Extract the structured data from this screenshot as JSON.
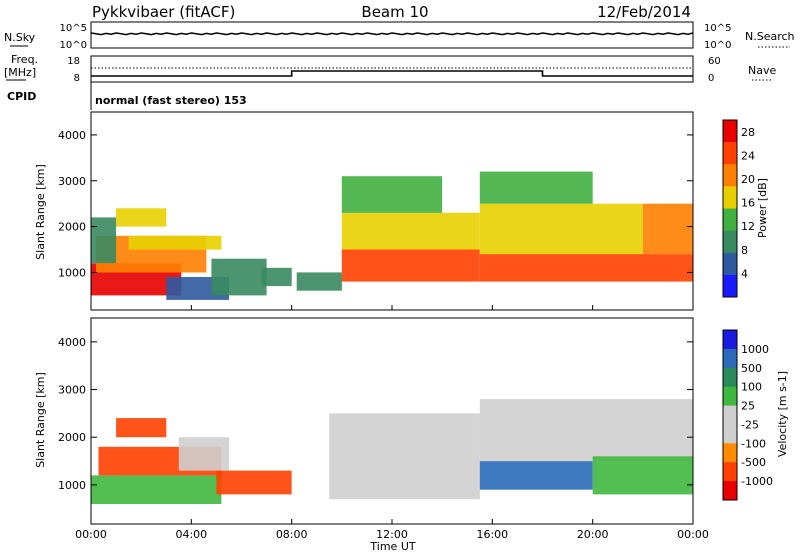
{
  "header": {
    "station": "Pykkvibaer (fitACF)",
    "beam": "Beam 10",
    "date": "12/Feb/2014"
  },
  "left_labels": {
    "nsky": "N.Sky",
    "freq_top": "Freq.",
    "freq_unit": "[MHz]",
    "cpid": "CPID"
  },
  "right_labels": {
    "nsearch": "N.Search",
    "nave": "Nave"
  },
  "strip_axes": {
    "nsky_ticks": [
      "10^5",
      "10^0"
    ],
    "nsearch_ticks": [
      "10^5",
      "10^0"
    ],
    "freq_ticks": [
      "18",
      "8"
    ],
    "nave_ticks": [
      "60",
      "0"
    ]
  },
  "cpid_text": "normal (fast stereo) 153",
  "x_axis": {
    "label": "Time UT",
    "ticks": [
      "00:00",
      "04:00",
      "08:00",
      "12:00",
      "16:00",
      "20:00",
      "00:00"
    ]
  },
  "colors": {
    "power_scale": [
      "#1a1aff",
      "#2d5aa0",
      "#3a8a60",
      "#40b040",
      "#e8d000",
      "#ff8000",
      "#ff4000",
      "#e80000"
    ],
    "velocity_scale": [
      "#e80000",
      "#ff4000",
      "#ff8c00",
      "#cfcfcf",
      "#cfcfcf",
      "#40b840",
      "#2a8a5a",
      "#2a6ab8",
      "#1a1ae0"
    ],
    "ground_scatter": "#c8c8c4"
  },
  "chart_data": [
    {
      "type": "heatmap",
      "panel": "power",
      "ylabel": "Slant Range [km]",
      "ylim": [
        180,
        4500
      ],
      "yticks": [
        "4000",
        "3000",
        "2000",
        "1000"
      ],
      "xlim": [
        0,
        24
      ],
      "colorbar": {
        "label": "Power [dB]",
        "ticks": [
          "28",
          "24",
          "20",
          "16",
          "12",
          "8",
          "4"
        ],
        "range": [
          0,
          30
        ]
      },
      "regions": [
        {
          "t0": 0.0,
          "t1": 3.6,
          "r0": 500,
          "r1": 1200,
          "value": 27
        },
        {
          "t0": 0.2,
          "t1": 4.6,
          "r0": 1000,
          "r1": 1800,
          "value": 20
        },
        {
          "t0": 1.5,
          "t1": 5.2,
          "r0": 1500,
          "r1": 1800,
          "value": 18
        },
        {
          "t0": 1.0,
          "t1": 3.0,
          "r0": 2000,
          "r1": 2400,
          "value": 16
        },
        {
          "t0": 0.0,
          "t1": 1.0,
          "r0": 1200,
          "r1": 2200,
          "value": 8
        },
        {
          "t0": 3.0,
          "t1": 5.5,
          "r0": 400,
          "r1": 900,
          "value": 6
        },
        {
          "t0": 4.8,
          "t1": 7.0,
          "r0": 500,
          "r1": 1300,
          "value": 10
        },
        {
          "t0": 6.8,
          "t1": 8.0,
          "r0": 700,
          "r1": 1100,
          "value": 8
        },
        {
          "t0": 8.2,
          "t1": 10.0,
          "r0": 600,
          "r1": 1000,
          "value": 9
        },
        {
          "t0": 10.0,
          "t1": 15.5,
          "r0": 800,
          "r1": 1500,
          "value": 26
        },
        {
          "t0": 10.0,
          "t1": 15.5,
          "r0": 1500,
          "r1": 2300,
          "value": 15
        },
        {
          "t0": 10.0,
          "t1": 14.0,
          "r0": 2300,
          "r1": 3100,
          "value": 12
        },
        {
          "t0": 15.5,
          "t1": 24.0,
          "r0": 800,
          "r1": 1400,
          "value": 26
        },
        {
          "t0": 15.5,
          "t1": 22.0,
          "r0": 1400,
          "r1": 2500,
          "value": 18
        },
        {
          "t0": 15.5,
          "t1": 20.0,
          "r0": 2500,
          "r1": 3200,
          "value": 13
        },
        {
          "t0": 22.0,
          "t1": 24.0,
          "r0": 1400,
          "r1": 2500,
          "value": 20
        }
      ]
    },
    {
      "type": "heatmap",
      "panel": "velocity",
      "ylabel": "Slant Range [km]",
      "ylim": [
        180,
        4500
      ],
      "yticks": [
        "4000",
        "3000",
        "2000",
        "1000"
      ],
      "xlim": [
        0,
        24
      ],
      "colorbar": {
        "label": "Velocity [m s-1]",
        "ticks": [
          "1000",
          "500",
          "100",
          "25",
          "-25",
          "-100",
          "-500",
          "-1000"
        ]
      },
      "regions": [
        {
          "t0": 0.0,
          "t1": 5.2,
          "r0": 600,
          "r1": 1200,
          "value": 60
        },
        {
          "t0": 0.3,
          "t1": 5.2,
          "r0": 1200,
          "r1": 1800,
          "value": -150
        },
        {
          "t0": 1.0,
          "t1": 3.0,
          "r0": 2000,
          "r1": 2400,
          "value": -150
        },
        {
          "t0": 3.5,
          "t1": 5.5,
          "r0": 1300,
          "r1": 2000,
          "value": 0
        },
        {
          "t0": 5.0,
          "t1": 8.0,
          "r0": 800,
          "r1": 1300,
          "value": -100
        },
        {
          "t0": 9.5,
          "t1": 15.5,
          "r0": 700,
          "r1": 2500,
          "value": 0
        },
        {
          "t0": 15.5,
          "t1": 20.0,
          "r0": 900,
          "r1": 1500,
          "value": 600
        },
        {
          "t0": 15.5,
          "t1": 24.0,
          "r0": 1500,
          "r1": 2800,
          "value": 0
        },
        {
          "t0": 20.0,
          "t1": 24.0,
          "r0": 800,
          "r1": 1600,
          "value": 60
        }
      ]
    }
  ]
}
